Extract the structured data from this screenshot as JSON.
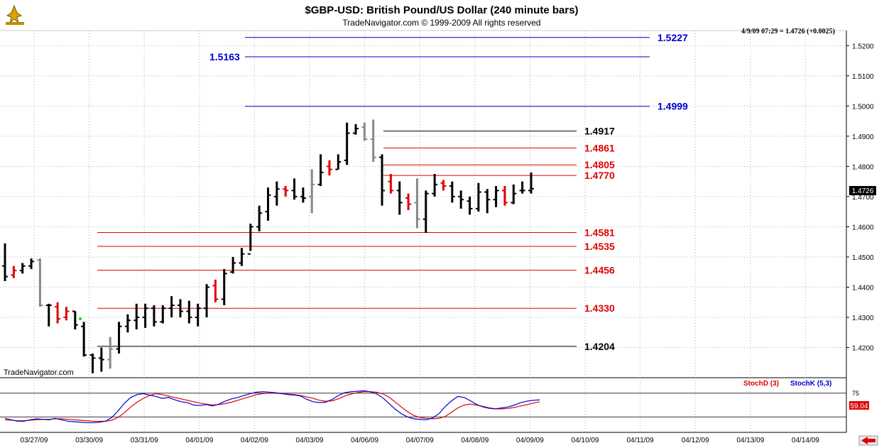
{
  "header": {
    "title": "$GBP-USD:  British Pound/US Dollar  (240 minute bars)",
    "copyright": "TradeNavigator.com © 1999-2009 All rights reserved",
    "quote": "4/9/09 07:29 = 1.4726 (+0.0025)",
    "watermark": "TradeNavigator.com"
  },
  "colors": {
    "up_bar": "#000000",
    "down_bar": "#e00000",
    "neutral_bar": "#888888",
    "stoch_d": "#e00000",
    "stoch_k": "#0000cc",
    "fib_blue": "#0000cc",
    "fib_red": "#e00000",
    "grid": "#b0b0b0"
  },
  "chart_data": {
    "type": "ohlc",
    "title": "$GBP-USD:  British Pound/US Dollar  (240 minute bars)",
    "ylim": [
      1.41,
      1.525
    ],
    "y_ticks": [
      "1.5200",
      "1.5100",
      "1.5000",
      "1.4900",
      "1.4800",
      "1.4700",
      "1.4600",
      "1.4500",
      "1.4400",
      "1.4300",
      "1.4200"
    ],
    "last_price_label": "1.4726",
    "x_labels": [
      "03/27/09",
      "03/30/09",
      "03/31/09",
      "04/01/09",
      "04/02/09",
      "04/03/09",
      "04/06/09",
      "04/07/09",
      "04/08/09",
      "04/09/09",
      "04/10/09",
      "04/11/09",
      "04/12/09",
      "04/13/09",
      "04/14/09"
    ],
    "bars": [
      {
        "o": 1.447,
        "h": 1.4545,
        "l": 1.442,
        "c": 1.4435,
        "k": "u"
      },
      {
        "o": 1.444,
        "h": 1.447,
        "l": 1.443,
        "c": 1.4455,
        "k": "d"
      },
      {
        "o": 1.4455,
        "h": 1.448,
        "l": 1.4445,
        "c": 1.447,
        "k": "u"
      },
      {
        "o": 1.447,
        "h": 1.4495,
        "l": 1.446,
        "c": 1.4485,
        "k": "u"
      },
      {
        "o": 1.449,
        "h": 1.4495,
        "l": 1.4335,
        "c": 1.434,
        "k": "n"
      },
      {
        "o": 1.434,
        "h": 1.4345,
        "l": 1.427,
        "c": 1.434,
        "k": "u"
      },
      {
        "o": 1.4335,
        "h": 1.435,
        "l": 1.428,
        "c": 1.4295,
        "k": "d"
      },
      {
        "o": 1.43,
        "h": 1.4335,
        "l": 1.429,
        "c": 1.432,
        "k": "d"
      },
      {
        "o": 1.432,
        "h": 1.432,
        "l": 1.426,
        "c": 1.4275,
        "k": "u"
      },
      {
        "o": 1.427,
        "h": 1.4285,
        "l": 1.417,
        "c": 1.4175,
        "k": "u"
      },
      {
        "o": 1.4175,
        "h": 1.418,
        "l": 1.4115,
        "c": 1.4165,
        "k": "u"
      },
      {
        "o": 1.4165,
        "h": 1.42,
        "l": 1.412,
        "c": 1.416,
        "k": "u"
      },
      {
        "o": 1.416,
        "h": 1.4235,
        "l": 1.413,
        "c": 1.4195,
        "k": "n"
      },
      {
        "o": 1.4195,
        "h": 1.4285,
        "l": 1.418,
        "c": 1.427,
        "k": "u"
      },
      {
        "o": 1.427,
        "h": 1.431,
        "l": 1.425,
        "c": 1.429,
        "k": "u"
      },
      {
        "o": 1.429,
        "h": 1.4345,
        "l": 1.426,
        "c": 1.43,
        "k": "u"
      },
      {
        "o": 1.43,
        "h": 1.4345,
        "l": 1.4265,
        "c": 1.433,
        "k": "u"
      },
      {
        "o": 1.433,
        "h": 1.434,
        "l": 1.427,
        "c": 1.4285,
        "k": "u"
      },
      {
        "o": 1.4285,
        "h": 1.434,
        "l": 1.428,
        "c": 1.433,
        "k": "u"
      },
      {
        "o": 1.433,
        "h": 1.437,
        "l": 1.43,
        "c": 1.434,
        "k": "u"
      },
      {
        "o": 1.434,
        "h": 1.436,
        "l": 1.43,
        "c": 1.432,
        "k": "u"
      },
      {
        "o": 1.432,
        "h": 1.4355,
        "l": 1.428,
        "c": 1.43,
        "k": "u"
      },
      {
        "o": 1.43,
        "h": 1.4345,
        "l": 1.427,
        "c": 1.433,
        "k": "u"
      },
      {
        "o": 1.433,
        "h": 1.441,
        "l": 1.43,
        "c": 1.44,
        "k": "u"
      },
      {
        "o": 1.4405,
        "h": 1.4425,
        "l": 1.435,
        "c": 1.436,
        "k": "d"
      },
      {
        "o": 1.436,
        "h": 1.446,
        "l": 1.434,
        "c": 1.4445,
        "k": "u"
      },
      {
        "o": 1.445,
        "h": 1.45,
        "l": 1.4445,
        "c": 1.448,
        "k": "u"
      },
      {
        "o": 1.448,
        "h": 1.453,
        "l": 1.447,
        "c": 1.451,
        "k": "u"
      },
      {
        "o": 1.451,
        "h": 1.461,
        "l": 1.452,
        "c": 1.46,
        "k": "u"
      },
      {
        "o": 1.46,
        "h": 1.467,
        "l": 1.4585,
        "c": 1.4645,
        "k": "u"
      },
      {
        "o": 1.465,
        "h": 1.473,
        "l": 1.462,
        "c": 1.4705,
        "k": "u"
      },
      {
        "o": 1.47,
        "h": 1.475,
        "l": 1.467,
        "c": 1.4725,
        "k": "u"
      },
      {
        "o": 1.4725,
        "h": 1.4735,
        "l": 1.47,
        "c": 1.472,
        "k": "d"
      },
      {
        "o": 1.472,
        "h": 1.476,
        "l": 1.469,
        "c": 1.47,
        "k": "u"
      },
      {
        "o": 1.47,
        "h": 1.473,
        "l": 1.468,
        "c": 1.4695,
        "k": "u"
      },
      {
        "o": 1.47,
        "h": 1.479,
        "l": 1.4645,
        "c": 1.474,
        "k": "n"
      },
      {
        "o": 1.474,
        "h": 1.484,
        "l": 1.4735,
        "c": 1.478,
        "k": "u"
      },
      {
        "o": 1.48,
        "h": 1.482,
        "l": 1.477,
        "c": 1.479,
        "k": "d"
      },
      {
        "o": 1.479,
        "h": 1.484,
        "l": 1.479,
        "c": 1.4815,
        "k": "u"
      },
      {
        "o": 1.482,
        "h": 1.4945,
        "l": 1.4805,
        "c": 1.491,
        "k": "u"
      },
      {
        "o": 1.491,
        "h": 1.494,
        "l": 1.4905,
        "c": 1.4925,
        "k": "u"
      },
      {
        "o": 1.493,
        "h": 1.4945,
        "l": 1.4885,
        "c": 1.489,
        "k": "n"
      },
      {
        "o": 1.489,
        "h": 1.4955,
        "l": 1.4815,
        "c": 1.483,
        "k": "n"
      },
      {
        "o": 1.483,
        "h": 1.484,
        "l": 1.467,
        "c": 1.472,
        "k": "u"
      },
      {
        "o": 1.475,
        "h": 1.4775,
        "l": 1.471,
        "c": 1.472,
        "k": "d"
      },
      {
        "o": 1.472,
        "h": 1.475,
        "l": 1.464,
        "c": 1.468,
        "k": "u"
      },
      {
        "o": 1.4695,
        "h": 1.471,
        "l": 1.4655,
        "c": 1.4675,
        "k": "d"
      },
      {
        "o": 1.468,
        "h": 1.476,
        "l": 1.4595,
        "c": 1.4625,
        "k": "n"
      },
      {
        "o": 1.4625,
        "h": 1.472,
        "l": 1.458,
        "c": 1.471,
        "k": "u"
      },
      {
        "o": 1.471,
        "h": 1.4775,
        "l": 1.47,
        "c": 1.474,
        "k": "u"
      },
      {
        "o": 1.4745,
        "h": 1.4755,
        "l": 1.472,
        "c": 1.4735,
        "k": "d"
      },
      {
        "o": 1.4735,
        "h": 1.475,
        "l": 1.468,
        "c": 1.47,
        "k": "u"
      },
      {
        "o": 1.47,
        "h": 1.472,
        "l": 1.466,
        "c": 1.469,
        "k": "u"
      },
      {
        "o": 1.4685,
        "h": 1.47,
        "l": 1.464,
        "c": 1.466,
        "k": "u"
      },
      {
        "o": 1.466,
        "h": 1.4745,
        "l": 1.465,
        "c": 1.4715,
        "k": "u"
      },
      {
        "o": 1.4715,
        "h": 1.4725,
        "l": 1.4645,
        "c": 1.469,
        "k": "u"
      },
      {
        "o": 1.469,
        "h": 1.4735,
        "l": 1.4665,
        "c": 1.472,
        "k": "u"
      },
      {
        "o": 1.472,
        "h": 1.4735,
        "l": 1.467,
        "c": 1.468,
        "k": "d"
      },
      {
        "o": 1.468,
        "h": 1.474,
        "l": 1.4675,
        "c": 1.471,
        "k": "u"
      },
      {
        "o": 1.472,
        "h": 1.475,
        "l": 1.471,
        "c": 1.472,
        "k": "u"
      },
      {
        "o": 1.472,
        "h": 1.478,
        "l": 1.471,
        "c": 1.4726,
        "k": "u"
      }
    ],
    "levels": [
      {
        "value": 1.5227,
        "label": "1.5227",
        "color": "blue",
        "span": "far",
        "label_side": "right"
      },
      {
        "value": 1.5163,
        "label": "1.5163",
        "color": "blue",
        "span": "far",
        "label_side": "left"
      },
      {
        "value": 1.4999,
        "label": "1.4999",
        "color": "blue",
        "span": "far",
        "label_side": "right"
      },
      {
        "value": 1.4917,
        "label": "1.4917",
        "color": "black",
        "span": "near",
        "label_side": "right"
      },
      {
        "value": 1.4861,
        "label": "1.4861",
        "color": "red",
        "span": "near",
        "label_side": "right"
      },
      {
        "value": 1.4805,
        "label": "1.4805",
        "color": "red",
        "span": "near",
        "label_side": "right"
      },
      {
        "value": 1.477,
        "label": "1.4770",
        "color": "red",
        "span": "near",
        "label_side": "right"
      },
      {
        "value": 1.4581,
        "label": "1.4581",
        "color": "red",
        "span": "wide",
        "label_side": "right"
      },
      {
        "value": 1.4535,
        "label": "1.4535",
        "color": "red",
        "span": "wide",
        "label_side": "right"
      },
      {
        "value": 1.4456,
        "label": "1.4456",
        "color": "red",
        "span": "wide",
        "label_side": "right"
      },
      {
        "value": 1.433,
        "label": "1.4330",
        "color": "red",
        "span": "wide",
        "label_side": "right"
      },
      {
        "value": 1.4204,
        "label": "1.4204",
        "color": "black",
        "span": "wide",
        "label_side": "right"
      }
    ],
    "indicator": {
      "legend_d": "StochD (3)",
      "legend_k": "StochK (5,3)",
      "ref_upper": 75,
      "ref_lower": 25,
      "ref_upper_label": "75",
      "last_value_label": "59.04",
      "stoch_d": [
        19,
        18,
        17,
        17,
        18,
        19,
        20,
        20,
        21,
        21,
        20,
        19,
        18,
        17,
        16,
        16,
        16,
        18,
        24,
        34,
        46,
        56,
        64,
        70,
        74,
        72,
        69,
        66,
        63,
        60,
        57,
        54,
        52,
        50,
        51,
        53,
        56,
        60,
        64,
        68,
        72,
        74,
        75,
        75,
        74,
        73,
        72,
        70,
        67,
        64,
        60,
        58,
        59,
        63,
        69,
        73,
        76,
        78,
        78,
        77,
        74,
        67,
        57,
        46,
        36,
        28,
        24,
        22,
        21,
        22,
        26,
        35,
        44,
        50,
        52,
        50,
        47,
        44,
        42,
        42,
        43,
        45,
        48,
        51,
        54,
        57
      ],
      "stoch_k": [
        22,
        19,
        16,
        16,
        19,
        21,
        20,
        19,
        22,
        19,
        16,
        15,
        14,
        13,
        13,
        14,
        16,
        24,
        38,
        54,
        66,
        72,
        74,
        71,
        68,
        64,
        66,
        61,
        57,
        55,
        50,
        49,
        51,
        48,
        52,
        58,
        63,
        66,
        70,
        74,
        77,
        78,
        77,
        76,
        74,
        72,
        71,
        69,
        62,
        57,
        55,
        56,
        62,
        70,
        76,
        78,
        79,
        80,
        78,
        74,
        66,
        54,
        42,
        32,
        25,
        21,
        20,
        19,
        23,
        32,
        47,
        59,
        68,
        66,
        59,
        51,
        46,
        43,
        42,
        44,
        46,
        50,
        55,
        58,
        60,
        61
      ]
    }
  }
}
